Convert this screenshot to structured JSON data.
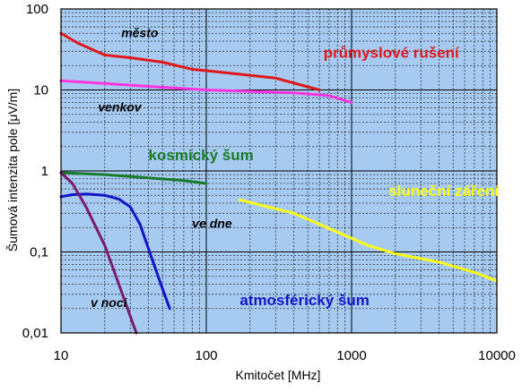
{
  "chart_data": {
    "type": "line",
    "xlabel": "Kmitočet   [MHz]",
    "ylabel": "Šumová intenzita pole   [μV/m]",
    "x_scale": "log",
    "y_scale": "log",
    "xlim": [
      10,
      10000
    ],
    "ylim": [
      0.01,
      100
    ],
    "grid": true,
    "plot_background": "#a6caf0",
    "x_ticks": [
      {
        "value": 10,
        "label": "10"
      },
      {
        "value": 100,
        "label": "100"
      },
      {
        "value": 1000,
        "label": "1000"
      },
      {
        "value": 10000,
        "label": "10000"
      }
    ],
    "y_ticks": [
      {
        "value": 100,
        "label": "100"
      },
      {
        "value": 10,
        "label": "10"
      },
      {
        "value": 1,
        "label": "1"
      },
      {
        "value": 0.1,
        "label": "0,1"
      },
      {
        "value": 0.01,
        "label": "0,01"
      }
    ],
    "series": [
      {
        "name": "město",
        "color": "#e0181b",
        "width": 3,
        "points": [
          [
            10,
            50
          ],
          [
            13,
            38
          ],
          [
            20,
            27
          ],
          [
            30,
            25
          ],
          [
            50,
            22
          ],
          [
            80,
            18
          ],
          [
            150,
            16
          ],
          [
            300,
            14
          ],
          [
            450,
            11.5
          ],
          [
            600,
            10
          ]
        ]
      },
      {
        "name": "venkov",
        "color": "#ff33e0",
        "width": 3,
        "points": [
          [
            10,
            13
          ],
          [
            20,
            12
          ],
          [
            50,
            10.8
          ],
          [
            100,
            10
          ],
          [
            200,
            9.6
          ],
          [
            400,
            9.2
          ],
          [
            700,
            8.5
          ],
          [
            1000,
            7
          ]
        ]
      },
      {
        "name": "kosmický šum",
        "color": "#1a7a2c",
        "width": 3,
        "points": [
          [
            10,
            0.95
          ],
          [
            20,
            0.9
          ],
          [
            40,
            0.82
          ],
          [
            70,
            0.76
          ],
          [
            100,
            0.7
          ]
        ]
      },
      {
        "name": "sluneční záření",
        "color": "#ffff1a",
        "width": 3,
        "points": [
          [
            170,
            0.44
          ],
          [
            250,
            0.37
          ],
          [
            400,
            0.3
          ],
          [
            600,
            0.22
          ],
          [
            900,
            0.16
          ],
          [
            1300,
            0.12
          ],
          [
            2000,
            0.095
          ],
          [
            4000,
            0.075
          ],
          [
            7000,
            0.056
          ],
          [
            10000,
            0.044
          ]
        ]
      },
      {
        "name": "ve dne",
        "color": "#1414c8",
        "width": 3,
        "points": [
          [
            10,
            0.48
          ],
          [
            12,
            0.51
          ],
          [
            15,
            0.52
          ],
          [
            20,
            0.5
          ],
          [
            25,
            0.45
          ],
          [
            30,
            0.36
          ],
          [
            35,
            0.22
          ],
          [
            40,
            0.11
          ],
          [
            45,
            0.06
          ],
          [
            50,
            0.035
          ],
          [
            56,
            0.02
          ]
        ]
      },
      {
        "name": "v noci",
        "color": "#7a1a70",
        "width": 3,
        "points": [
          [
            10,
            0.95
          ],
          [
            12,
            0.7
          ],
          [
            15,
            0.35
          ],
          [
            20,
            0.12
          ],
          [
            25,
            0.04
          ],
          [
            30,
            0.016
          ],
          [
            33,
            0.01
          ]
        ]
      }
    ],
    "annotations": [
      {
        "text": "město",
        "x": 26,
        "y": 45,
        "color": "#000000",
        "size": 14,
        "italic": true,
        "bold": true
      },
      {
        "text": "průmyslové rušení",
        "x": 640,
        "y": 25,
        "color": "#e0181b",
        "size": 17,
        "bold": true
      },
      {
        "text": "venkov",
        "x": 18,
        "y": 5.4,
        "color": "#000000",
        "size": 14,
        "italic": true,
        "bold": true
      },
      {
        "text": "kosmický šum",
        "x": 40,
        "y": 1.35,
        "color": "#1a7a2c",
        "size": 17,
        "bold": true
      },
      {
        "text": "sluneční záření",
        "x": 1800,
        "y": 0.49,
        "color": "#ffff1a",
        "size": 17,
        "bold": true
      },
      {
        "text": "ve dne",
        "x": 80,
        "y": 0.2,
        "color": "#000000",
        "size": 14,
        "italic": true,
        "bold": true
      },
      {
        "text": "atmosférický šum",
        "x": 170,
        "y": 0.022,
        "color": "#1414c8",
        "size": 17,
        "bold": true
      },
      {
        "text": "v noci",
        "x": 16,
        "y": 0.021,
        "color": "#000000",
        "size": 14,
        "italic": true,
        "bold": true
      }
    ]
  }
}
